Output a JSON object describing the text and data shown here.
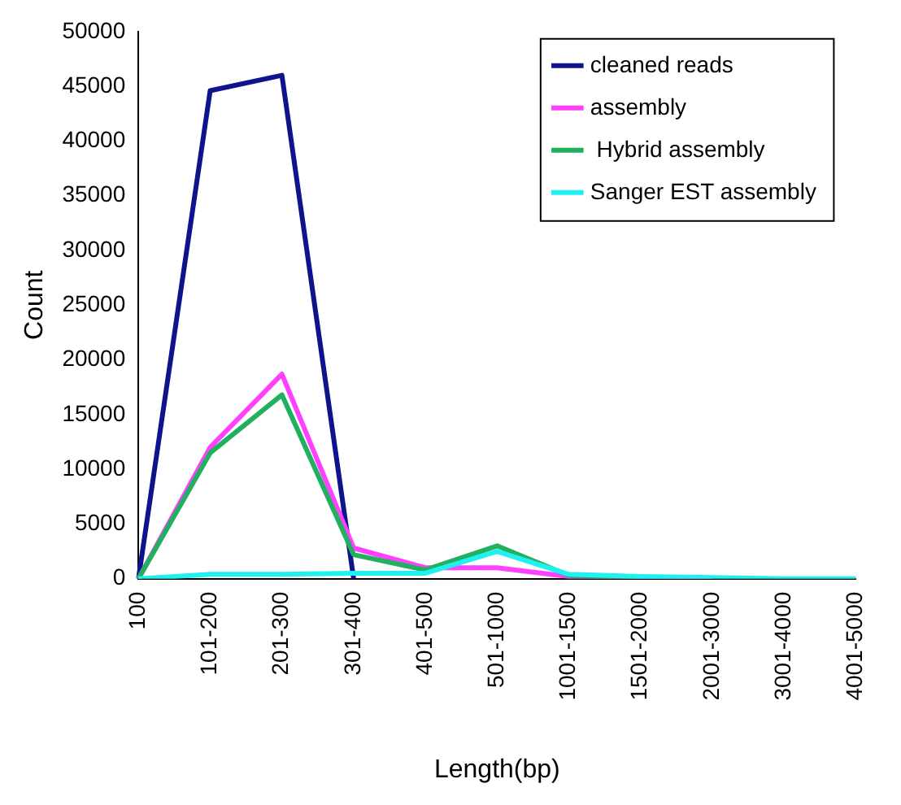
{
  "chart_data": {
    "type": "line",
    "xlabel": "Length(bp)",
    "ylabel": "Count",
    "categories": [
      "100",
      "101-200",
      "201-300",
      "301-400",
      "401-500",
      "501-1000",
      "1001-1500",
      "1501-2000",
      "2001-3000",
      "3001-4000",
      "4001-5000"
    ],
    "series": [
      {
        "name": "cleaned reads",
        "color": "#10148c",
        "values": [
          0,
          44600,
          46000,
          0,
          null,
          null,
          null,
          null,
          null,
          null,
          null
        ]
      },
      {
        "name": "assembly",
        "color": "#ff40ff",
        "values": [
          0,
          12000,
          18700,
          2800,
          1000,
          1000,
          200,
          0,
          0,
          null,
          null
        ]
      },
      {
        "name": " Hybrid assembly",
        "color": "#20b060",
        "values": [
          0,
          11500,
          16800,
          2200,
          800,
          3000,
          300,
          100,
          null,
          null,
          null
        ]
      },
      {
        "name": "Sanger EST assembly",
        "color": "#20f0f0",
        "values": [
          0,
          400,
          400,
          500,
          500,
          2500,
          400,
          200,
          100,
          0,
          0
        ]
      }
    ],
    "ylim": [
      0,
      50000
    ],
    "yticks": [
      0,
      5000,
      10000,
      15000,
      20000,
      25000,
      30000,
      35000,
      40000,
      45000,
      50000
    ],
    "grid": false,
    "legend": "top right",
    "marker": "none",
    "line_style": "solid"
  }
}
